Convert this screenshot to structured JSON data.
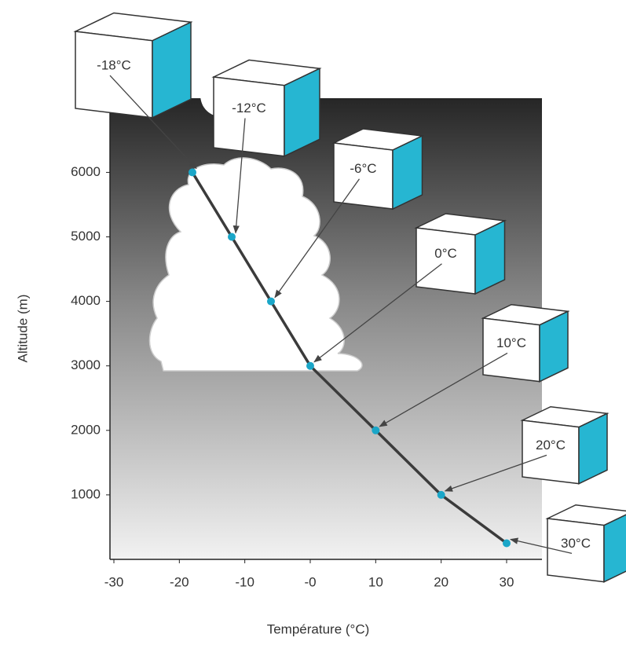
{
  "chart_data": {
    "type": "line",
    "x_label": "Température (°C)",
    "y_label": "Altitude (m)",
    "x": [
      -18,
      -12,
      -6,
      0,
      10,
      20,
      30
    ],
    "values": [
      6000,
      5000,
      4000,
      3000,
      2000,
      1000,
      250
    ],
    "annotations": [
      "-18°C",
      "-12°C",
      "-6°C",
      "0°C",
      "10°C",
      "20°C",
      "30°C"
    ],
    "color": "#3b3b3b",
    "marker_color": "#1aa6c8",
    "cube_color": "#26b6d2",
    "xlim": [
      -30.6,
      35.4
    ],
    "ylim": [
      0,
      7150
    ],
    "xticks": [
      -30,
      -20,
      -10,
      {
        "value": 0,
        "label": "-0"
      },
      10,
      20,
      30
    ],
    "yticks": [
      1000,
      2000,
      3000,
      4000,
      5000,
      6000
    ]
  }
}
